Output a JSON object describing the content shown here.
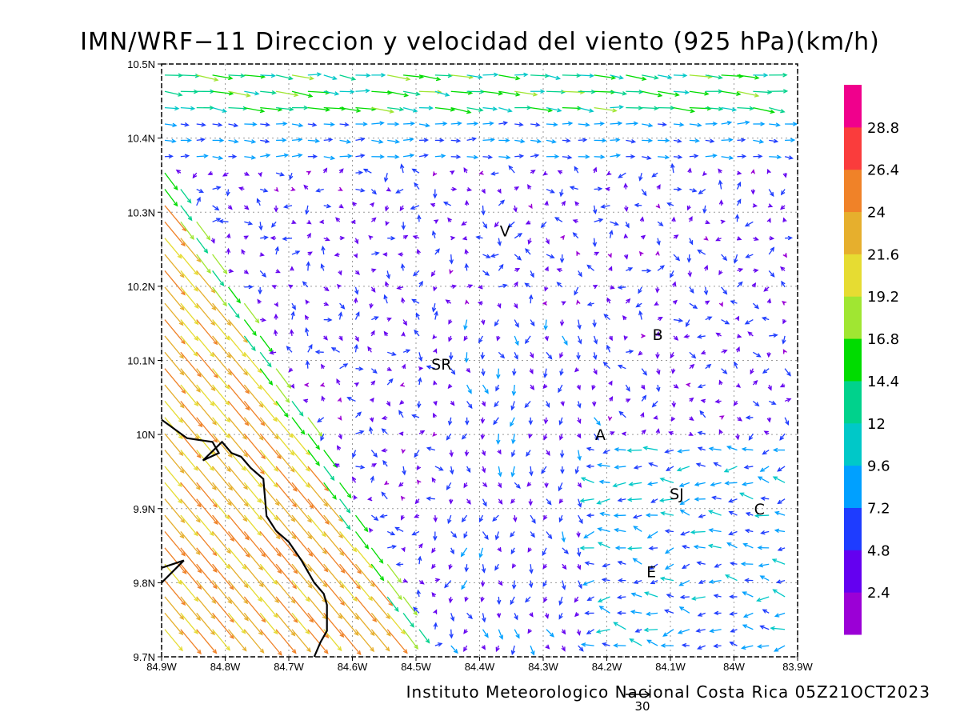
{
  "title": "IMN/WRF−11 Direccion y velocidad del viento (925 hPa)(km/h)",
  "credit": "Instituto Meteorologico Nacional Costa Rica 05Z21OCT2023",
  "reference_vector": {
    "label": "30",
    "speed": 30
  },
  "axes": {
    "lon_ticks": [
      {
        "value": -84.9,
        "label": "84.9W"
      },
      {
        "value": -84.8,
        "label": "84.8W"
      },
      {
        "value": -84.7,
        "label": "84.7W"
      },
      {
        "value": -84.6,
        "label": "84.6W"
      },
      {
        "value": -84.5,
        "label": "84.5W"
      },
      {
        "value": -84.4,
        "label": "84.4W"
      },
      {
        "value": -84.3,
        "label": "84.3W"
      },
      {
        "value": -84.2,
        "label": "84.2W"
      },
      {
        "value": -84.1,
        "label": "84.1W"
      },
      {
        "value": -84.0,
        "label": "84W"
      },
      {
        "value": -83.9,
        "label": "83.9W"
      }
    ],
    "lat_ticks": [
      {
        "value": 10.5,
        "label": "10.5N"
      },
      {
        "value": 10.4,
        "label": "10.4N"
      },
      {
        "value": 10.3,
        "label": "10.3N"
      },
      {
        "value": 10.2,
        "label": "10.2N"
      },
      {
        "value": 10.1,
        "label": "10.1N"
      },
      {
        "value": 10.0,
        "label": "10N"
      },
      {
        "value": 9.9,
        "label": "9.9N"
      },
      {
        "value": 9.8,
        "label": "9.8N"
      },
      {
        "value": 9.7,
        "label": "9.7N"
      }
    ],
    "lon_range": [
      -84.9,
      -83.9
    ],
    "lat_range": [
      9.7,
      10.5
    ],
    "grid": "dotted"
  },
  "colorbar": {
    "labels": [
      "2.4",
      "4.8",
      "7.2",
      "9.6",
      "12",
      "14.4",
      "16.8",
      "19.2",
      "21.6",
      "24",
      "26.4",
      "28.8"
    ],
    "colors": [
      "#9b00d6",
      "#6400f0",
      "#1e3cff",
      "#00a0ff",
      "#00c8c8",
      "#00d28c",
      "#00dc00",
      "#a0e632",
      "#e6dc32",
      "#e6af2d",
      "#f08228",
      "#fa3c3c",
      "#f0008c"
    ]
  },
  "places": [
    {
      "label": "V",
      "lon": -84.36,
      "lat": 10.275
    },
    {
      "label": "B",
      "lon": -84.12,
      "lat": 10.135
    },
    {
      "label": "SR",
      "lon": -84.46,
      "lat": 10.095
    },
    {
      "label": "A",
      "lon": -84.21,
      "lat": 10.0
    },
    {
      "label": "SJ",
      "lon": -84.09,
      "lat": 9.92
    },
    {
      "label": "C",
      "lon": -83.96,
      "lat": 9.9
    },
    {
      "label": "E",
      "lon": -84.13,
      "lat": 9.815
    }
  ],
  "coastline": [
    [
      -84.9,
      10.02
    ],
    [
      -84.86,
      9.995
    ],
    [
      -84.82,
      9.99
    ],
    [
      -84.81,
      9.975
    ],
    [
      -84.835,
      9.965
    ],
    [
      -84.805,
      9.99
    ],
    [
      -84.79,
      9.975
    ],
    [
      -84.775,
      9.97
    ],
    [
      -84.76,
      9.955
    ],
    [
      -84.74,
      9.94
    ],
    [
      -84.735,
      9.89
    ],
    [
      -84.72,
      9.87
    ],
    [
      -84.7,
      9.855
    ],
    [
      -84.68,
      9.83
    ],
    [
      -84.66,
      9.8
    ],
    [
      -84.645,
      9.785
    ],
    [
      -84.64,
      9.77
    ],
    [
      -84.64,
      9.735
    ],
    [
      -84.65,
      9.72
    ],
    [
      -84.66,
      9.7
    ]
  ],
  "coastline_nicoya": [
    [
      -84.9,
      9.82
    ],
    [
      -84.865,
      9.83
    ],
    [
      -84.9,
      9.8
    ]
  ]
}
